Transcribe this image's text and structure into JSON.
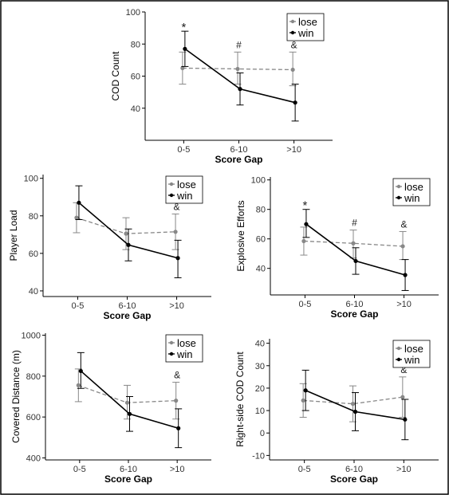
{
  "figure": {
    "border_color": "#000000",
    "lose_color": "#888888",
    "win_color": "#000000"
  },
  "chart_data": [
    {
      "id": "cod",
      "type": "line",
      "xlabel": "Score Gap",
      "ylabel": "COD Count",
      "categories": [
        "0-5",
        "6-10",
        ">10"
      ],
      "ylim": [
        20,
        100
      ],
      "yticks": [
        "40",
        "60",
        "80",
        "100"
      ],
      "legend": {
        "position": "top-right",
        "entries": [
          "lose",
          "win"
        ]
      },
      "series": [
        {
          "name": "lose",
          "style": "dashed",
          "values": [
            65,
            64.5,
            64
          ],
          "err_low": [
            55,
            55,
            54
          ],
          "err_high": [
            75,
            75,
            75
          ]
        },
        {
          "name": "win",
          "style": "solid",
          "values": [
            77,
            52,
            43.5
          ],
          "err_low": [
            66,
            42,
            32
          ],
          "err_high": [
            88,
            62,
            55
          ]
        }
      ],
      "annotations": [
        "*",
        "#",
        "&"
      ]
    },
    {
      "id": "player-load",
      "type": "line",
      "xlabel": "Score Gap",
      "ylabel": "Player Load",
      "categories": [
        "0-5",
        "6-10",
        ">10"
      ],
      "ylim": [
        37,
        102
      ],
      "yticks": [
        "40",
        "60",
        "80",
        "100"
      ],
      "legend": {
        "position": "top-right",
        "entries": [
          "lose",
          "win"
        ]
      },
      "series": [
        {
          "name": "lose",
          "style": "dashed",
          "values": [
            79,
            70.5,
            71.5
          ],
          "err_low": [
            71,
            62,
            62
          ],
          "err_high": [
            87,
            79,
            81
          ]
        },
        {
          "name": "win",
          "style": "solid",
          "values": [
            87,
            64.5,
            57.5
          ],
          "err_low": [
            78,
            56,
            47
          ],
          "err_high": [
            96,
            73,
            67
          ]
        }
      ],
      "annotations": [
        "",
        "",
        "&"
      ]
    },
    {
      "id": "explosive",
      "type": "line",
      "xlabel": "Score Gap",
      "ylabel": "Explosive Efforts",
      "categories": [
        "0-5",
        "6-10",
        ">10"
      ],
      "ylim": [
        22,
        102
      ],
      "yticks": [
        "40",
        "60",
        "80",
        "100"
      ],
      "legend": {
        "position": "top-right",
        "entries": [
          "lose",
          "win"
        ]
      },
      "series": [
        {
          "name": "lose",
          "style": "dashed",
          "values": [
            58.5,
            57,
            55
          ],
          "err_low": [
            49,
            47,
            46
          ],
          "err_high": [
            68,
            66,
            65
          ]
        },
        {
          "name": "win",
          "style": "solid",
          "values": [
            70,
            45,
            35.5
          ],
          "err_low": [
            61,
            36,
            25
          ],
          "err_high": [
            80,
            54,
            46
          ]
        }
      ],
      "annotations": [
        "*",
        "#",
        "&"
      ]
    },
    {
      "id": "distance",
      "type": "line",
      "xlabel": "Score Gap",
      "ylabel": "Covered Distance (m)",
      "categories": [
        "0-5",
        "6-10",
        ">10"
      ],
      "ylim": [
        390,
        1010
      ],
      "yticks": [
        "400",
        "600",
        "800",
        "1000"
      ],
      "legend": {
        "position": "top-right",
        "entries": [
          "lose",
          "win"
        ]
      },
      "series": [
        {
          "name": "lose",
          "style": "dashed",
          "values": [
            755,
            670,
            680
          ],
          "err_low": [
            675,
            590,
            590
          ],
          "err_high": [
            835,
            755,
            770
          ]
        },
        {
          "name": "win",
          "style": "solid",
          "values": [
            825,
            615,
            545
          ],
          "err_low": [
            740,
            530,
            450
          ],
          "err_high": [
            915,
            700,
            640
          ]
        }
      ],
      "annotations": [
        "",
        "",
        "&"
      ]
    },
    {
      "id": "right-cod",
      "type": "line",
      "xlabel": "Score Gap",
      "ylabel": "Right-side COD Count",
      "categories": [
        "0-5",
        "6-10",
        ">10"
      ],
      "ylim": [
        -12,
        42
      ],
      "yticks": [
        "-10",
        "0",
        "10",
        "20",
        "30",
        "40"
      ],
      "legend": {
        "position": "top-right",
        "entries": [
          "lose",
          "win"
        ]
      },
      "series": [
        {
          "name": "lose",
          "style": "dashed",
          "values": [
            14.5,
            13,
            16
          ],
          "err_low": [
            7,
            5,
            7
          ],
          "err_high": [
            22,
            21,
            25
          ]
        },
        {
          "name": "win",
          "style": "solid",
          "values": [
            19,
            9.5,
            6
          ],
          "err_low": [
            10,
            1,
            -3
          ],
          "err_high": [
            28,
            18,
            15
          ]
        }
      ],
      "annotations": [
        "",
        "",
        "&"
      ]
    }
  ]
}
